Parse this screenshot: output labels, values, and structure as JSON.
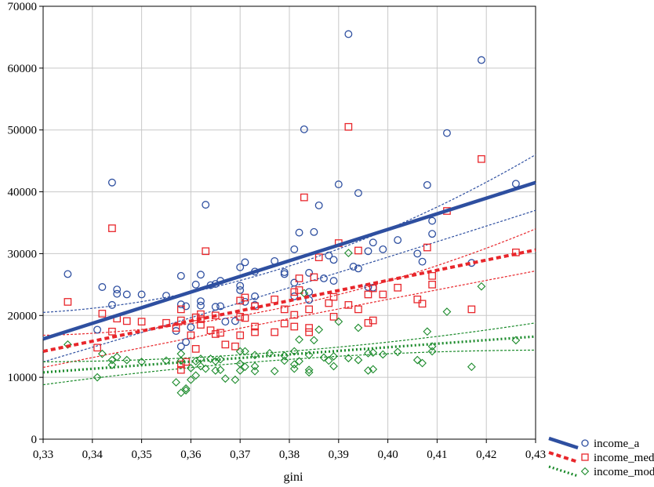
{
  "chart_data": {
    "type": "scatter",
    "xlabel": "gini",
    "ylabel": "",
    "xlim": [
      0.33,
      0.43
    ],
    "ylim": [
      0,
      70000
    ],
    "x_ticks": [
      "0,33",
      "0,34",
      "0,35",
      "0,36",
      "0,37",
      "0,38",
      "0,39",
      "0,40",
      "0,41",
      "0,42",
      "0,43"
    ],
    "y_ticks": [
      "0",
      "10000",
      "20000",
      "30000",
      "40000",
      "50000",
      "60000",
      "70000"
    ],
    "grid": true,
    "legend_position": "bottom-right",
    "series": [
      {
        "name": "income_a",
        "marker": "circle",
        "color": "#2e4fa0",
        "fit": {
          "x0": 0.33,
          "y0": 16200,
          "x1": 0.43,
          "y1": 41500
        },
        "ci_upper": [
          [
            0.33,
            20500
          ],
          [
            0.38,
            28000
          ],
          [
            0.43,
            46000
          ]
        ],
        "ci_lower": [
          [
            0.33,
            12500
          ],
          [
            0.38,
            24500
          ],
          [
            0.43,
            37000
          ]
        ],
        "points": [
          [
            0.335,
            26700
          ],
          [
            0.341,
            17700
          ],
          [
            0.342,
            24600
          ],
          [
            0.344,
            21700
          ],
          [
            0.344,
            41500
          ],
          [
            0.345,
            24200
          ],
          [
            0.345,
            23500
          ],
          [
            0.347,
            23400
          ],
          [
            0.35,
            23400
          ],
          [
            0.355,
            23200
          ],
          [
            0.357,
            17500
          ],
          [
            0.358,
            26400
          ],
          [
            0.358,
            21800
          ],
          [
            0.358,
            15000
          ],
          [
            0.359,
            21500
          ],
          [
            0.359,
            15700
          ],
          [
            0.36,
            18100
          ],
          [
            0.361,
            25000
          ],
          [
            0.362,
            26600
          ],
          [
            0.362,
            22300
          ],
          [
            0.362,
            21600
          ],
          [
            0.363,
            37900
          ],
          [
            0.364,
            24900
          ],
          [
            0.365,
            25100
          ],
          [
            0.365,
            21400
          ],
          [
            0.366,
            25600
          ],
          [
            0.366,
            21500
          ],
          [
            0.367,
            19000
          ],
          [
            0.369,
            19100
          ],
          [
            0.37,
            27800
          ],
          [
            0.37,
            24800
          ],
          [
            0.37,
            24100
          ],
          [
            0.371,
            28600
          ],
          [
            0.371,
            22200
          ],
          [
            0.373,
            27100
          ],
          [
            0.373,
            23100
          ],
          [
            0.373,
            21700
          ],
          [
            0.377,
            28800
          ],
          [
            0.379,
            27000
          ],
          [
            0.379,
            26700
          ],
          [
            0.381,
            25300
          ],
          [
            0.381,
            23100
          ],
          [
            0.381,
            30700
          ],
          [
            0.382,
            33400
          ],
          [
            0.383,
            50100
          ],
          [
            0.384,
            26900
          ],
          [
            0.384,
            23800
          ],
          [
            0.384,
            22500
          ],
          [
            0.385,
            33500
          ],
          [
            0.386,
            37800
          ],
          [
            0.387,
            26000
          ],
          [
            0.388,
            29700
          ],
          [
            0.389,
            29000
          ],
          [
            0.389,
            25600
          ],
          [
            0.39,
            41200
          ],
          [
            0.392,
            65500
          ],
          [
            0.393,
            27900
          ],
          [
            0.394,
            39800
          ],
          [
            0.394,
            27600
          ],
          [
            0.396,
            30400
          ],
          [
            0.396,
            24600
          ],
          [
            0.397,
            31800
          ],
          [
            0.397,
            24500
          ],
          [
            0.399,
            30700
          ],
          [
            0.402,
            32200
          ],
          [
            0.406,
            30000
          ],
          [
            0.407,
            28700
          ],
          [
            0.408,
            41100
          ],
          [
            0.409,
            35300
          ],
          [
            0.409,
            33200
          ],
          [
            0.412,
            49500
          ],
          [
            0.417,
            28500
          ],
          [
            0.419,
            61300
          ],
          [
            0.426,
            41300
          ]
        ]
      },
      {
        "name": "income_med",
        "marker": "square",
        "color": "#e8262b",
        "fit": {
          "x0": 0.33,
          "y0": 14200,
          "x1": 0.43,
          "y1": 30600
        },
        "ci_upper": [
          [
            0.33,
            16800
          ],
          [
            0.38,
            21500
          ],
          [
            0.43,
            34000
          ]
        ],
        "ci_lower": [
          [
            0.33,
            11600
          ],
          [
            0.38,
            19500
          ],
          [
            0.43,
            27200
          ]
        ],
        "points": [
          [
            0.335,
            22200
          ],
          [
            0.341,
            14800
          ],
          [
            0.342,
            20300
          ],
          [
            0.344,
            34100
          ],
          [
            0.344,
            17400
          ],
          [
            0.345,
            19500
          ],
          [
            0.347,
            19100
          ],
          [
            0.35,
            19000
          ],
          [
            0.355,
            18800
          ],
          [
            0.357,
            18000
          ],
          [
            0.358,
            21000
          ],
          [
            0.358,
            19200
          ],
          [
            0.358,
            12100
          ],
          [
            0.358,
            11200
          ],
          [
            0.359,
            12500
          ],
          [
            0.36,
            16800
          ],
          [
            0.361,
            14600
          ],
          [
            0.361,
            19700
          ],
          [
            0.362,
            20200
          ],
          [
            0.362,
            19400
          ],
          [
            0.362,
            18500
          ],
          [
            0.363,
            30400
          ],
          [
            0.364,
            17600
          ],
          [
            0.365,
            20000
          ],
          [
            0.365,
            17000
          ],
          [
            0.366,
            17200
          ],
          [
            0.367,
            15300
          ],
          [
            0.369,
            15000
          ],
          [
            0.37,
            22400
          ],
          [
            0.37,
            19800
          ],
          [
            0.37,
            16800
          ],
          [
            0.371,
            22900
          ],
          [
            0.371,
            19600
          ],
          [
            0.373,
            21500
          ],
          [
            0.373,
            18200
          ],
          [
            0.373,
            17300
          ],
          [
            0.377,
            22600
          ],
          [
            0.377,
            17300
          ],
          [
            0.379,
            21000
          ],
          [
            0.379,
            18700
          ],
          [
            0.381,
            23800
          ],
          [
            0.381,
            20100
          ],
          [
            0.381,
            18200
          ],
          [
            0.382,
            26000
          ],
          [
            0.382,
            24100
          ],
          [
            0.383,
            39100
          ],
          [
            0.384,
            21000
          ],
          [
            0.384,
            18000
          ],
          [
            0.384,
            17300
          ],
          [
            0.385,
            26200
          ],
          [
            0.386,
            29400
          ],
          [
            0.388,
            22000
          ],
          [
            0.389,
            23000
          ],
          [
            0.389,
            19800
          ],
          [
            0.39,
            31700
          ],
          [
            0.392,
            50500
          ],
          [
            0.392,
            21700
          ],
          [
            0.394,
            30500
          ],
          [
            0.394,
            21000
          ],
          [
            0.396,
            23400
          ],
          [
            0.396,
            18800
          ],
          [
            0.397,
            24400
          ],
          [
            0.397,
            19200
          ],
          [
            0.399,
            23400
          ],
          [
            0.402,
            24500
          ],
          [
            0.406,
            22600
          ],
          [
            0.407,
            21900
          ],
          [
            0.408,
            31000
          ],
          [
            0.409,
            26400
          ],
          [
            0.409,
            25000
          ],
          [
            0.412,
            36900
          ],
          [
            0.417,
            21000
          ],
          [
            0.419,
            45300
          ],
          [
            0.426,
            30200
          ]
        ]
      },
      {
        "name": "income_mod",
        "marker": "diamond",
        "color": "#1a8a2a",
        "fit": {
          "x0": 0.33,
          "y0": 10800,
          "x1": 0.43,
          "y1": 16600
        },
        "ci_upper": [
          [
            0.33,
            12500
          ],
          [
            0.38,
            14200
          ],
          [
            0.43,
            18800
          ]
        ],
        "ci_lower": [
          [
            0.33,
            8800
          ],
          [
            0.38,
            12900
          ],
          [
            0.43,
            14400
          ]
        ],
        "points": [
          [
            0.335,
            15300
          ],
          [
            0.341,
            10000
          ],
          [
            0.342,
            13800
          ],
          [
            0.344,
            12000
          ],
          [
            0.344,
            12800
          ],
          [
            0.345,
            13300
          ],
          [
            0.347,
            12800
          ],
          [
            0.35,
            12500
          ],
          [
            0.355,
            12700
          ],
          [
            0.357,
            9200
          ],
          [
            0.358,
            13800
          ],
          [
            0.358,
            12700
          ],
          [
            0.358,
            7500
          ],
          [
            0.359,
            7900
          ],
          [
            0.359,
            8200
          ],
          [
            0.36,
            9600
          ],
          [
            0.36,
            11500
          ],
          [
            0.361,
            12600
          ],
          [
            0.361,
            10300
          ],
          [
            0.362,
            13000
          ],
          [
            0.362,
            11800
          ],
          [
            0.363,
            11400
          ],
          [
            0.364,
            13000
          ],
          [
            0.365,
            12600
          ],
          [
            0.365,
            11100
          ],
          [
            0.366,
            12900
          ],
          [
            0.366,
            11200
          ],
          [
            0.367,
            9800
          ],
          [
            0.369,
            9600
          ],
          [
            0.37,
            14200
          ],
          [
            0.37,
            12200
          ],
          [
            0.37,
            11100
          ],
          [
            0.371,
            14200
          ],
          [
            0.371,
            11700
          ],
          [
            0.373,
            13600
          ],
          [
            0.373,
            11800
          ],
          [
            0.373,
            11000
          ],
          [
            0.376,
            13900
          ],
          [
            0.377,
            11000
          ],
          [
            0.379,
            13500
          ],
          [
            0.379,
            12700
          ],
          [
            0.381,
            14200
          ],
          [
            0.381,
            12100
          ],
          [
            0.381,
            11400
          ],
          [
            0.382,
            16100
          ],
          [
            0.382,
            12600
          ],
          [
            0.383,
            23600
          ],
          [
            0.384,
            13600
          ],
          [
            0.384,
            11200
          ],
          [
            0.384,
            10800
          ],
          [
            0.385,
            16000
          ],
          [
            0.386,
            17700
          ],
          [
            0.387,
            13200
          ],
          [
            0.388,
            12700
          ],
          [
            0.389,
            13400
          ],
          [
            0.389,
            11800
          ],
          [
            0.39,
            19000
          ],
          [
            0.392,
            30100
          ],
          [
            0.392,
            13100
          ],
          [
            0.394,
            18000
          ],
          [
            0.394,
            12800
          ],
          [
            0.396,
            13900
          ],
          [
            0.396,
            11100
          ],
          [
            0.397,
            14000
          ],
          [
            0.397,
            11300
          ],
          [
            0.399,
            13700
          ],
          [
            0.402,
            14100
          ],
          [
            0.406,
            12800
          ],
          [
            0.407,
            12300
          ],
          [
            0.408,
            17400
          ],
          [
            0.409,
            15000
          ],
          [
            0.409,
            14200
          ],
          [
            0.412,
            20600
          ],
          [
            0.417,
            11700
          ],
          [
            0.419,
            24700
          ],
          [
            0.426,
            16000
          ]
        ]
      }
    ]
  }
}
